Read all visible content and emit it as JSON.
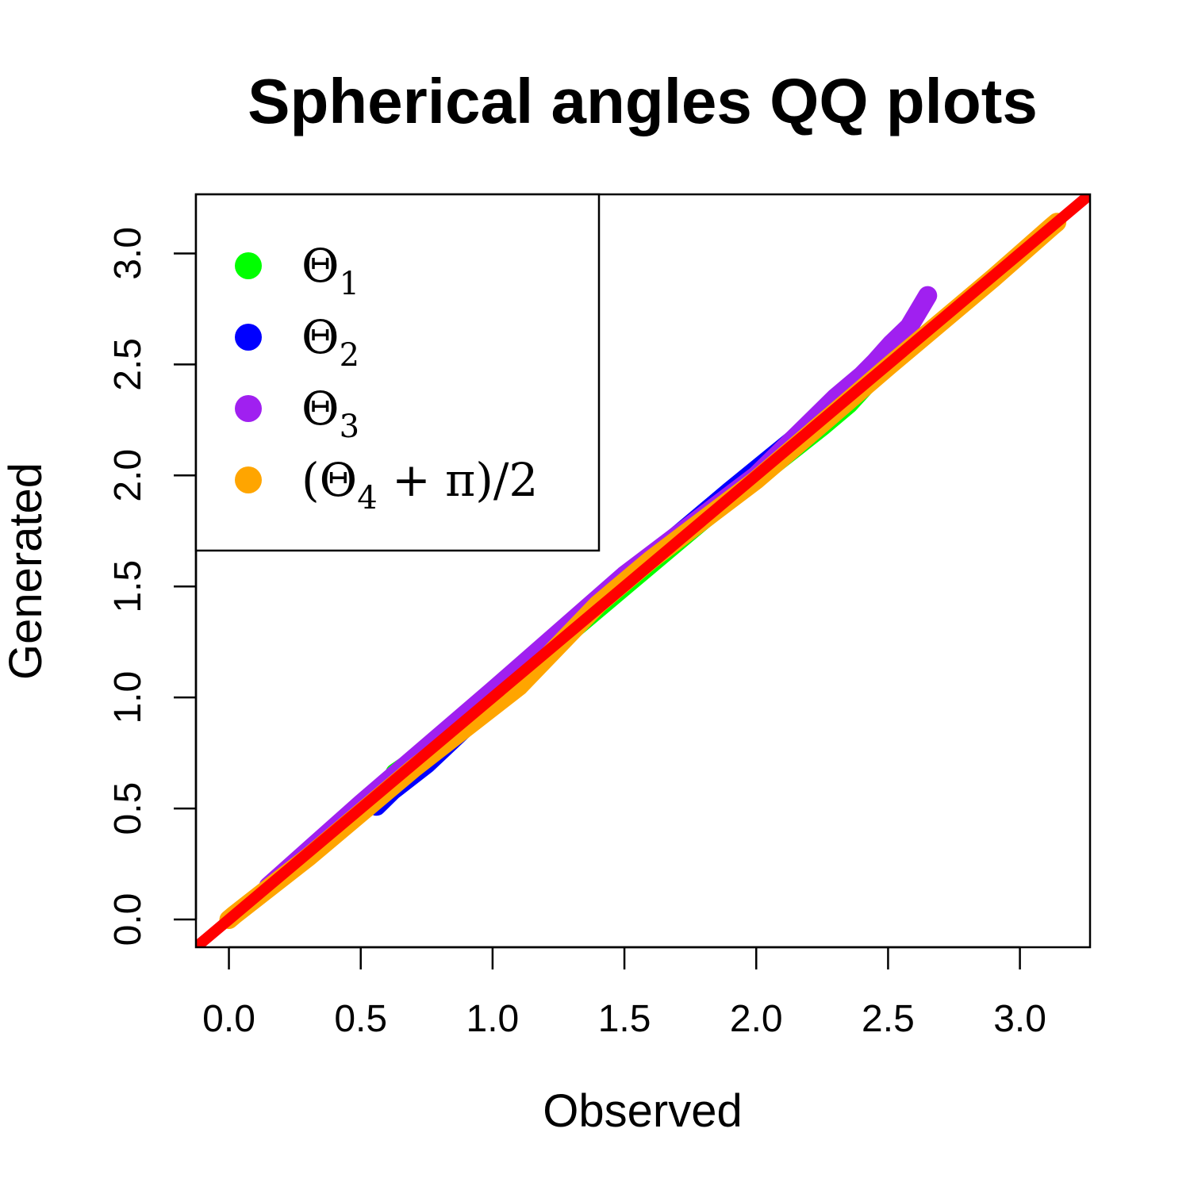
{
  "chart_data": {
    "type": "scatter",
    "title": "Spherical angles QQ plots",
    "xlabel": "Observed",
    "ylabel": "Generated",
    "xlim": [
      -0.125,
      3.266
    ],
    "ylim": [
      -0.125,
      3.266
    ],
    "xticks": [
      0.0,
      0.5,
      1.0,
      1.5,
      2.0,
      2.5,
      3.0
    ],
    "yticks": [
      0.0,
      0.5,
      1.0,
      1.5,
      2.0,
      2.5,
      3.0
    ],
    "xtick_labels": [
      "0.0",
      "0.5",
      "1.0",
      "1.5",
      "2.0",
      "2.5",
      "3.0"
    ],
    "ytick_labels": [
      "0.0",
      "0.5",
      "1.0",
      "1.5",
      "2.0",
      "2.5",
      "3.0"
    ],
    "grid": false,
    "legend_position": "top-left",
    "reference_line": {
      "slope": 1,
      "intercept": 0,
      "color": "#ff0000"
    },
    "series": [
      {
        "label_base": "Θ",
        "label_sub": "1",
        "label_suffix": "",
        "color": "#00ff00",
        "x": [
          0.63,
          0.9,
          1.2,
          1.5,
          1.8,
          2.1,
          2.25,
          2.35,
          2.45,
          2.55
        ],
        "y": [
          0.66,
          0.88,
          1.2,
          1.5,
          1.8,
          2.08,
          2.22,
          2.32,
          2.45,
          2.62
        ]
      },
      {
        "label_base": "Θ",
        "label_sub": "2",
        "label_suffix": "",
        "color": "#0000ff",
        "x": [
          0.56,
          0.62,
          0.75,
          1.0,
          1.3,
          1.6,
          1.9,
          2.2
        ],
        "y": [
          0.51,
          0.58,
          0.7,
          0.98,
          1.32,
          1.63,
          1.93,
          2.22
        ]
      },
      {
        "label_base": "Θ",
        "label_sub": "3",
        "label_suffix": "",
        "color": "#a020f0",
        "x": [
          0.15,
          0.5,
          1.0,
          1.5,
          2.0,
          2.3,
          2.4,
          2.45,
          2.48,
          2.51,
          2.58,
          2.65
        ],
        "y": [
          0.15,
          0.52,
          1.03,
          1.55,
          2.0,
          2.35,
          2.45,
          2.51,
          2.55,
          2.59,
          2.67,
          2.81
        ]
      },
      {
        "label_base": "(Θ",
        "label_sub": "4",
        "label_suffix": " + π)/2",
        "color": "#ffa500",
        "x": [
          0.0,
          0.02,
          0.3,
          0.7,
          1.1,
          1.4,
          1.6,
          2.0,
          2.5,
          2.9,
          3.12,
          3.14
        ],
        "y": [
          0.0,
          0.02,
          0.28,
          0.68,
          1.05,
          1.42,
          1.62,
          1.98,
          2.49,
          2.89,
          3.12,
          3.14
        ]
      }
    ]
  }
}
